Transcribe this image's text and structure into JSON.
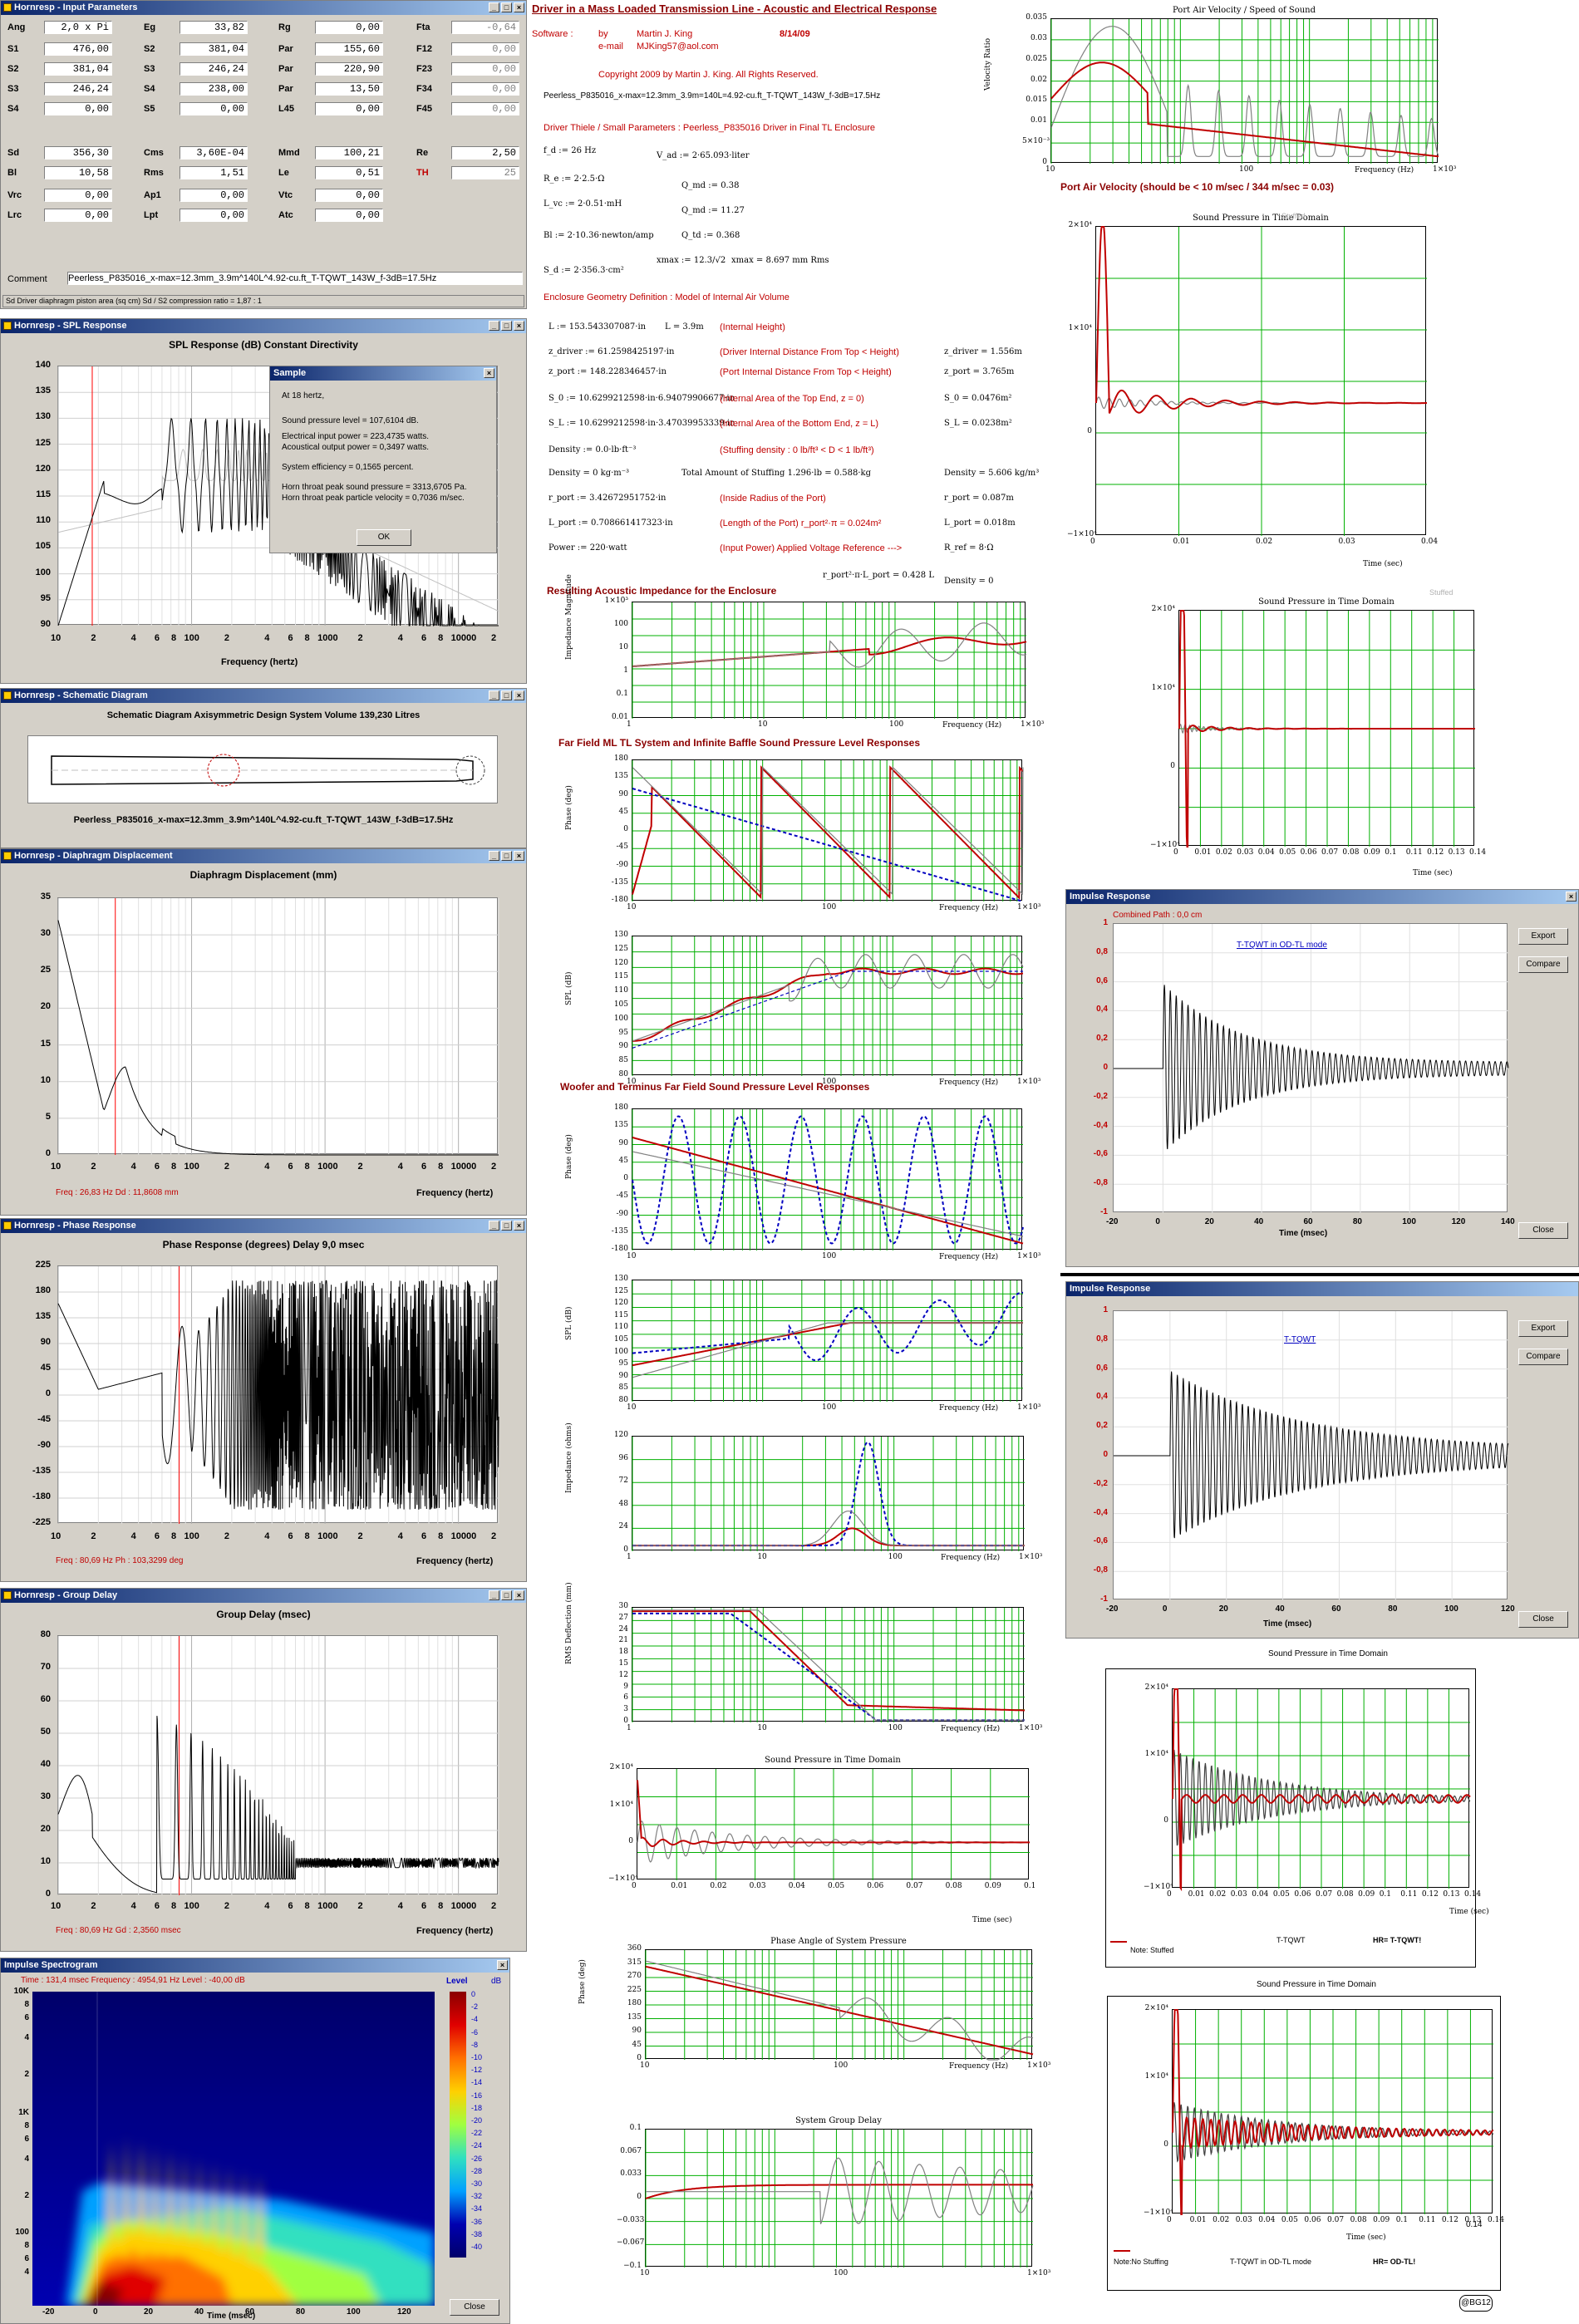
{
  "colors": {
    "accent": "#c00000",
    "grid": "#00b000",
    "blue": "#0000c0",
    "title_bar": "#0a246a"
  },
  "input": {
    "title": "Hornresp - Input Parameters",
    "rows": [
      [
        [
          "Ang",
          "2,0 x Pi"
        ],
        [
          "Eg",
          "33,82"
        ],
        [
          "Rg",
          "0,00"
        ],
        [
          "Fta",
          "-0,64"
        ]
      ],
      [
        [
          "S1",
          "476,00"
        ],
        [
          "S2",
          "381,04"
        ],
        [
          "Par",
          "155,60"
        ],
        [
          "F12",
          "0,00"
        ]
      ],
      [
        [
          "S2",
          "381,04"
        ],
        [
          "S3",
          "246,24"
        ],
        [
          "Par",
          "220,90"
        ],
        [
          "F23",
          "0,00"
        ]
      ],
      [
        [
          "S3",
          "246,24"
        ],
        [
          "S4",
          "238,00"
        ],
        [
          "Par",
          "13,50"
        ],
        [
          "F34",
          "0,00"
        ]
      ],
      [
        [
          "S4",
          "0,00"
        ],
        [
          "S5",
          "0,00"
        ],
        [
          "L45",
          "0,00"
        ],
        [
          "F45",
          "0,00"
        ]
      ],
      [
        [
          "Sd",
          "356,30"
        ],
        [
          "Cms",
          "3,60E-04"
        ],
        [
          "Mmd",
          "100,21"
        ],
        [
          "Re",
          "2,50"
        ]
      ],
      [
        [
          "Bl",
          "10,58"
        ],
        [
          "Rms",
          "1,51"
        ],
        [
          "Le",
          "0,51"
        ],
        [
          "TH",
          "25"
        ]
      ],
      [
        [
          "Vrc",
          "0,00"
        ],
        [
          "Ap1",
          "0,00"
        ],
        [
          "Vtc",
          "0,00"
        ]
      ],
      [
        [
          "Lrc",
          "0,00"
        ],
        [
          "Lpt",
          "0,00"
        ],
        [
          "Atc",
          "0,00"
        ]
      ]
    ],
    "comment_label": "Comment",
    "comment": "Peerless_P835016_x-max=12.3mm_3.9m^140L^4.92-cu.ft_T-TQWT_143W_f-3dB=17.5Hz",
    "status": "Sd  Driver diaphragm piston area  (sq cm)   Sd / S2 compression ratio = 1,87 : 1"
  },
  "spl": {
    "title": "Hornresp - SPL Response",
    "heading": "SPL Response (dB)   Constant Directivity",
    "yticks": [
      "140",
      "135",
      "130",
      "125",
      "120",
      "115",
      "110",
      "105",
      "100",
      "95",
      "90"
    ],
    "xticks": [
      "10",
      "2",
      "4",
      "6",
      "8",
      "100",
      "2",
      "4",
      "6",
      "8",
      "1000",
      "2",
      "4",
      "6",
      "8",
      "10000",
      "2"
    ],
    "xlabel": "Frequency (hertz)"
  },
  "sample": {
    "title": "Sample",
    "lines": [
      "At 18 hertz,",
      "Sound pressure level = 107,6104 dB.",
      "Electrical input power = 223,4735 watts.",
      "Acoustical output power = 0,3497 watts.",
      "System efficiency = 0,1565 percent.",
      "Horn throat peak sound pressure = 3313,6705 Pa.",
      "Horn throat peak particle velocity = 0,7036 m/sec."
    ],
    "ok": "OK"
  },
  "schematic": {
    "title": "Hornresp - Schematic Diagram",
    "heading": "Schematic Diagram   Axisymmetric Design   System Volume 139,230 Litres",
    "caption": "Peerless_P835016_x-max=12.3mm_3.9m^140L^4.92-cu.ft_T-TQWT_143W_f-3dB=17.5Hz"
  },
  "disp": {
    "title": "Hornresp - Diaphragm Displacement",
    "heading": "Diaphragm Displacement (mm)",
    "yticks": [
      "35",
      "30",
      "25",
      "20",
      "15",
      "10",
      "5",
      "0"
    ],
    "xticks": [
      "10",
      "2",
      "4",
      "6",
      "8",
      "100",
      "2",
      "4",
      "6",
      "8",
      "1000",
      "2",
      "4",
      "6",
      "8",
      "10000",
      "2"
    ],
    "xlabel": "Frequency (hertz)",
    "status": "Freq : 26,83 Hz     Dd : 11,8608 mm"
  },
  "phase": {
    "title": "Hornresp - Phase Response",
    "heading": "Phase Response (degrees)   Delay 9,0 msec",
    "yticks": [
      "225",
      "180",
      "135",
      "90",
      "45",
      "0",
      "-45",
      "-90",
      "-135",
      "-180",
      "-225"
    ],
    "xticks": [
      "10",
      "2",
      "4",
      "6",
      "8",
      "100",
      "2",
      "4",
      "6",
      "8",
      "1000",
      "2",
      "4",
      "6",
      "8",
      "10000",
      "2"
    ],
    "xlabel": "Frequency (hertz)",
    "status": "Freq : 80,69 Hz     Ph : 103,3299 deg"
  },
  "gd": {
    "title": "Hornresp - Group Delay",
    "heading": "Group Delay (msec)",
    "yticks": [
      "80",
      "70",
      "60",
      "50",
      "40",
      "30",
      "20",
      "10",
      "0"
    ],
    "xticks": [
      "10",
      "2",
      "4",
      "6",
      "8",
      "100",
      "2",
      "4",
      "6",
      "8",
      "1000",
      "2",
      "4",
      "6",
      "8",
      "10000",
      "2"
    ],
    "xlabel": "Frequency (hertz)",
    "status": "Freq : 80,69 Hz     Gd : 2,3560 msec"
  },
  "spectro": {
    "title": "Impulse Spectrogram",
    "status": "Time : 131,4 msec     Frequency : 4954,91 Hz     Level : -40,00 dB",
    "yticks": [
      "10K",
      "8",
      "6",
      "4",
      "2",
      "1K",
      "8",
      "6",
      "4",
      "2",
      "100",
      "8",
      "6",
      "4"
    ],
    "xticks": [
      "-20",
      "0",
      "20",
      "40",
      "60",
      "80",
      "100",
      "120"
    ],
    "xlabel": "Time (msec)",
    "level_label": "Level",
    "db_label": "dB",
    "scale": [
      "0",
      "-2",
      "-4",
      "-6",
      "-8",
      "-10",
      "-12",
      "-14",
      "-16",
      "-18",
      "-20",
      "-22",
      "-24",
      "-26",
      "-28",
      "-30",
      "-32",
      "-34",
      "-36",
      "-38",
      "-40"
    ],
    "close": "Close"
  },
  "mathcad": {
    "title": "Driver in a Mass Loaded Transmission Line - Acoustic and Electrical Response",
    "software": "Software :",
    "by": "by",
    "author": "Martin J. King",
    "date": "8/14/09",
    "email_label": "e-mail",
    "email": "MJKing57@aol.com",
    "copyright": "Copyright 2009 by Martin J. King. All Rights Reserved.",
    "filename": "Peerless_P835016_x-max=12.3mm_3.9m=140L=4.92-cu.ft_T-TQWT_143W_f-3dB=17.5Hz",
    "ts_heading": "Driver Thiele / Small Parameters : Peerless_P835016  Driver in Final TL Enclosure",
    "geom_heading": "Enclosure Geometry Definition : Model of Internal Air Volume",
    "ts": [
      "f_d := 26 Hz",
      "V_ad := 2·65.093·liter",
      "R_e := 2·2.5·Ω",
      "Q_md := 0.38",
      "L_vc := 2·0.51·mH",
      "Q_md := 11.27",
      "Bl := 2·10.36·newton/amp",
      "Q_td := 0.368",
      "S_d := 2·356.3·cm²",
      "xmax := 12.3/√2",
      "xmax = 8.697  mm Rms"
    ],
    "geom": [
      [
        "L := 153.543307087·in",
        "L = 3.9m",
        "(Internal Height)",
        ""
      ],
      [
        "z_driver := 61.2598425197·in",
        "",
        "(Driver Internal Distance From Top < Height)",
        "z_driver = 1.556m"
      ],
      [
        "z_port := 148.228346457·in",
        "",
        "(Port Internal Distance From Top < Height)",
        "z_port = 3.765m"
      ],
      [
        "S_0 := 10.6299212598·in·6.94079906677·in",
        "",
        "(Internal Area of the Top End, z = 0)",
        "S_0 = 0.0476m²"
      ],
      [
        "S_L := 10.6299212598·in·3.47039953339·in",
        "",
        "(Internal Area of the Bottom End, z = L)",
        "S_L = 0.0238m²"
      ],
      [
        "Density := 0.0·lb·ft⁻³",
        "",
        "(Stuffing density : 0 lb/ft³ < D < 1 lb/ft³)",
        ""
      ],
      [
        "Density = 0 kg·m⁻³",
        "Total Amount of Stuffing   1.296·lb = 0.588·kg",
        "",
        "Density = 5.606 kg/m³"
      ],
      [
        "r_port := 3.42672951752·in",
        "",
        "(Inside Radius of the Port)",
        "r_port = 0.087m"
      ],
      [
        "L_port := 0.708661417323·in",
        "",
        "(Length of the Port)   r_port²·π = 0.024m²",
        "L_port = 0.018m"
      ],
      [
        "Power := 220·watt",
        "",
        "(Input Power)   Applied Voltage Reference --->",
        "R_ref = 8·Ω"
      ]
    ],
    "extra": "r_port²·π·L_port = 0.428 L",
    "density0": "Density = 0",
    "h_imp": "Resulting Acoustic Impedance for the Enclosure",
    "h_ff": "Far Field ML TL System and Infinite Baffle Sound Pressure Level Responses",
    "h_wt": "Woofer and Terminus Far Field Sound Pressure Level Responses",
    "freq_label": "Frequency (Hz)",
    "exp3": "1×10³",
    "ylabels": [
      "Impedance Magnitude",
      "Phase (deg)",
      "SPL (dB)",
      "Phase (deg)",
      "SPL (dB)",
      "Impedance (ohms)",
      "RMS Deflection (mm)",
      "",
      "Phase (deg)",
      ""
    ],
    "t_spt": "Sound Pressure in Time Domain",
    "t_phs": "Phase Angle of System Pressure",
    "t_sgd": "System Group Delay",
    "time_label": "Time (sec)"
  },
  "right": {
    "pv_title": "Port Air Velocity / Speed of Sound",
    "pv_ylabel": "Velocity Ratio",
    "pv_heading": "Port Air Velocity (should be < 10 m/sec / 344 m/sec = 0.03)",
    "pv_yticks": [
      "0.035",
      "0.03",
      "0.025",
      "0.02",
      "0.015",
      "0.01",
      "5×10⁻³",
      "0"
    ],
    "sp1_title": "Sound Pressure in Time Domain",
    "sp1_note": "Stuffed",
    "sp1_xticks": [
      "0",
      "0.01",
      "0.02",
      "0.03",
      "0.04"
    ],
    "sp2_title": "Sound Pressure in Time Domain",
    "sp2_note": "Stuffed",
    "sp2_xticks": [
      "0",
      "0.01",
      "0.02",
      "0.03",
      "0.04",
      "0.05",
      "0.06",
      "0.07",
      "0.08",
      "0.09",
      "0.1",
      "0.11",
      "0.12",
      "0.13",
      "0.14"
    ],
    "time_label": "Time (sec)",
    "yA": "2×10⁴",
    "yB": "1×10⁴",
    "yC": "0",
    "yD": "−1×10⁴",
    "ir1": {
      "title": "Impulse Response",
      "status": "Combined    Path : 0,0 cm",
      "legend": "T-TQWT in OD-TL mode",
      "yticks": [
        "1",
        "0,8",
        "0,6",
        "0,4",
        "0,2",
        "0",
        "-0,2",
        "-0,4",
        "-0,6",
        "-0,8",
        "-1"
      ],
      "xticks": [
        "-20",
        "0",
        "20",
        "40",
        "60",
        "80",
        "100",
        "120",
        "140"
      ],
      "xlabel": "Time (msec)",
      "export": "Export",
      "compare": "Compare",
      "close": "Close"
    },
    "ir2": {
      "title": "Impulse Response",
      "legend": "T-TQWT",
      "yticks": [
        "1",
        "0,8",
        "0,6",
        "0,4",
        "0,2",
        "0",
        "-0,2",
        "-0,4",
        "-0,6",
        "-0,8",
        "-1"
      ],
      "xticks": [
        "-20",
        "0",
        "20",
        "40",
        "60",
        "80",
        "100",
        "120"
      ],
      "xlabel": "Time (msec)",
      "export": "Export",
      "compare": "Compare",
      "close": "Close"
    },
    "sp3_title": "Sound Pressure in Time Domain",
    "sp3_note": "Note: Stuffed",
    "sp3_mid": "T-TQWT",
    "sp3_hr": "HR= T-TQWT!",
    "sp4_title": "Sound Pressure in Time Domain",
    "sp4_note": "Note:No Stuffing",
    "sp4_mid": "T-TQWT in OD-TL mode",
    "sp4_hr": "HR= OD-TL!",
    "sp4_extra": "0.14",
    "sig": "@BG12"
  }
}
